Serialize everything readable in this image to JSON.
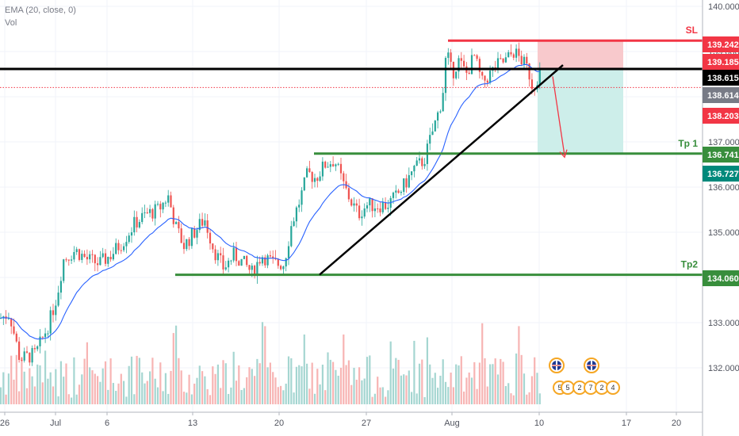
{
  "legend": {
    "ema": "EMA (20, close, 0)",
    "vol": "Vol"
  },
  "colors": {
    "up": "#26a69a",
    "down": "#ef5350",
    "ema": "#2962ff",
    "stop": "#f23645",
    "target": "#388e3c",
    "trend": "#000000",
    "risk_zone": "#f8c9cc",
    "reward_zone": "#cdeeea",
    "teal_tag": "#00897b",
    "grey_tag": "#787b86"
  },
  "chart_data": {
    "type": "candlestick",
    "y_axis": {
      "ylim": [
        131.2,
        140.1
      ],
      "ticks": [
        "140.000",
        "139.000",
        "138.000",
        "137.000",
        "136.000",
        "135.000",
        "134.000",
        "133.000",
        "132.000"
      ]
    },
    "x_axis": {
      "ticks": [
        "26",
        "Jul",
        "6",
        "13",
        "20",
        "27",
        "Aug",
        "10",
        "17",
        "20"
      ]
    },
    "price_trend": [
      [
        0,
        133.1
      ],
      [
        12,
        133.2
      ],
      [
        25,
        132.2
      ],
      [
        45,
        132.3
      ],
      [
        62,
        133.0
      ],
      [
        72,
        133.6
      ],
      [
        80,
        134.4
      ],
      [
        95,
        134.6
      ],
      [
        110,
        134.4
      ],
      [
        125,
        134.3
      ],
      [
        140,
        134.5
      ],
      [
        155,
        134.8
      ],
      [
        170,
        135.2
      ],
      [
        185,
        135.4
      ],
      [
        200,
        135.5
      ],
      [
        212,
        135.8
      ],
      [
        222,
        135.1
      ],
      [
        232,
        134.7
      ],
      [
        245,
        135.0
      ],
      [
        258,
        135.3
      ],
      [
        270,
        134.6
      ],
      [
        282,
        134.2
      ],
      [
        295,
        134.5
      ],
      [
        308,
        134.3
      ],
      [
        318,
        134.1
      ],
      [
        330,
        134.5
      ],
      [
        345,
        134.3
      ],
      [
        358,
        134.3
      ],
      [
        368,
        135.2
      ],
      [
        378,
        135.7
      ],
      [
        388,
        136.3
      ],
      [
        398,
        136.2
      ],
      [
        410,
        136.5
      ],
      [
        422,
        136.6
      ],
      [
        432,
        136.1
      ],
      [
        442,
        135.7
      ],
      [
        452,
        135.4
      ],
      [
        462,
        135.6
      ],
      [
        475,
        135.6
      ],
      [
        488,
        135.6
      ],
      [
        500,
        135.8
      ],
      [
        512,
        136.1
      ],
      [
        522,
        136.4
      ],
      [
        535,
        136.6
      ],
      [
        545,
        137.2
      ],
      [
        552,
        137.6
      ],
      [
        558,
        138.0
      ],
      [
        563,
        139.0
      ],
      [
        570,
        138.5
      ],
      [
        578,
        138.8
      ],
      [
        588,
        138.5
      ],
      [
        598,
        138.9
      ],
      [
        608,
        138.3
      ],
      [
        618,
        138.5
      ],
      [
        628,
        138.7
      ],
      [
        638,
        138.8
      ],
      [
        648,
        139.0
      ],
      [
        658,
        138.8
      ],
      [
        666,
        138.6
      ],
      [
        672,
        138.2
      ],
      [
        678,
        138.45
      ],
      [
        684,
        138.6
      ]
    ],
    "hlines": [
      {
        "label": "SL",
        "value": 139.242
      },
      {
        "label": "",
        "value": 138.615
      },
      {
        "label": "Tp 1",
        "value": 136.741
      },
      {
        "label": "Tp2",
        "value": 134.06
      }
    ],
    "price_tags": [
      {
        "value": "139.242",
        "role": "stop"
      },
      {
        "value": "139.185",
        "role": "stop"
      },
      {
        "value": "138.615",
        "role": "black"
      },
      {
        "value": "138.614",
        "role": "grey"
      },
      {
        "value": "138.203",
        "role": "stop"
      },
      {
        "value": "136.741",
        "role": "target"
      },
      {
        "value": "136.727",
        "role": "teal"
      },
      {
        "value": "134.060",
        "role": "target"
      }
    ],
    "trendline": {
      "from_price": 134.06,
      "to_price": 138.7
    },
    "position": {
      "entry": 138.615,
      "stop": 139.242,
      "target": 136.741
    },
    "events": {
      "values": [
        "5",
        "5",
        "2",
        "7",
        "2",
        "4"
      ],
      "flags": 2
    }
  }
}
